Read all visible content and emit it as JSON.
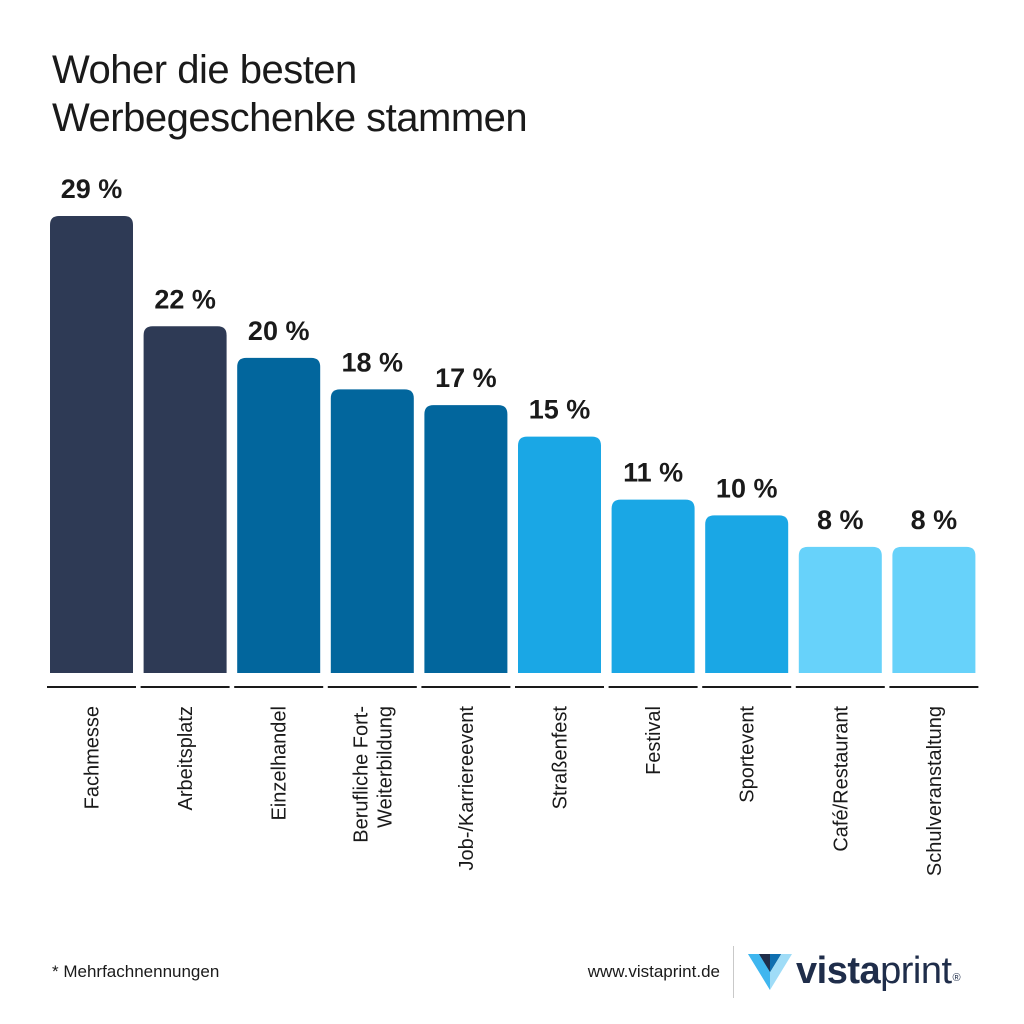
{
  "title_lines": [
    "Woher die besten",
    "Werbegeschenke stammen"
  ],
  "chart_data": {
    "type": "bar",
    "title": "Woher die besten Werbegeschenke stammen",
    "categories": [
      [
        "Fachmesse"
      ],
      [
        "Arbeitsplatz"
      ],
      [
        "Einzelhandel"
      ],
      [
        "Berufliche Fort-",
        "Weiterbildung"
      ],
      [
        "Job-/Karriereevent"
      ],
      [
        "Straßenfest"
      ],
      [
        "Festival"
      ],
      [
        "Sportevent"
      ],
      [
        "Café/Restaurant"
      ],
      [
        "Schulveranstaltung"
      ]
    ],
    "values": [
      29,
      22,
      20,
      18,
      17,
      15,
      11,
      10,
      8,
      8
    ],
    "value_labels": [
      "29 %",
      "22 %",
      "20 %",
      "18 %",
      "17 %",
      "15 %",
      "11 %",
      "10 %",
      "8 %",
      "8 %"
    ],
    "unit": "%",
    "colors": [
      "#2e3a55",
      "#2e3a55",
      "#02669d",
      "#02669d",
      "#02669d",
      "#1aa7e5",
      "#1aa7e5",
      "#1aa7e5",
      "#67d2fa",
      "#67d2fa"
    ],
    "xlabel": "",
    "ylabel": "",
    "ylim": [
      0,
      29
    ]
  },
  "footnote": "* Mehrfachnennungen",
  "website": "www.vistaprint.de",
  "logo": {
    "word_bold": "vista",
    "word_light": "print",
    "registered": "®",
    "colors": {
      "dark": "#1f2d4a",
      "mid": "#0f6fb0",
      "light": "#3fb6ef",
      "pale": "#9fdcf7"
    }
  },
  "axis_color": "#1a1a1a",
  "text_color": "#1a1a1a"
}
